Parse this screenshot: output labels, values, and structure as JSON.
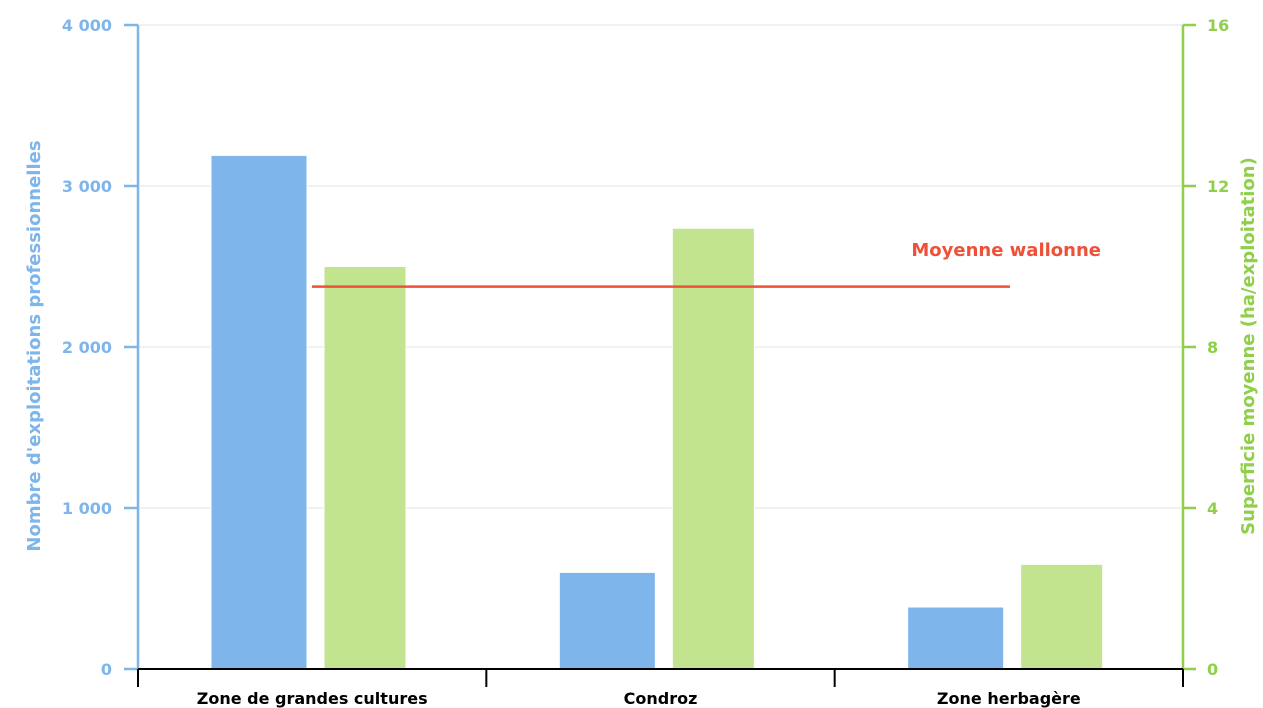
{
  "chart_data": {
    "type": "bar",
    "categories": [
      "Zone de grandes cultures",
      "Condroz",
      "Zone herbagère"
    ],
    "series": [
      {
        "axis": "left",
        "color": "#7eb5ea",
        "values": [
          3190,
          600,
          385
        ]
      },
      {
        "axis": "right",
        "color": "#c3e48e",
        "values": [
          10.0,
          10.95,
          2.6
        ]
      }
    ],
    "reference_line": {
      "label": "Moyenne wallonne",
      "axis": "right",
      "value": 9.5,
      "color": "#ef5138"
    },
    "y_left": {
      "label": "Nombre d'exploitations professionnelles",
      "ylim": [
        0,
        4000
      ],
      "ticks": [
        0,
        1000,
        2000,
        3000,
        4000
      ],
      "tick_labels": [
        "0",
        "1 000",
        "2 000",
        "3 000",
        "4 000"
      ],
      "color": "#7eb5ea"
    },
    "y_right": {
      "label": "Superficie moyenne (ha/exploitation)",
      "ylim": [
        0,
        16
      ],
      "ticks": [
        0,
        4,
        8,
        12,
        16
      ],
      "tick_labels": [
        "0",
        "4",
        "8",
        "12",
        "16"
      ],
      "color": "#8fcf4a"
    },
    "grid": true,
    "xaxis_color": "#000000"
  }
}
